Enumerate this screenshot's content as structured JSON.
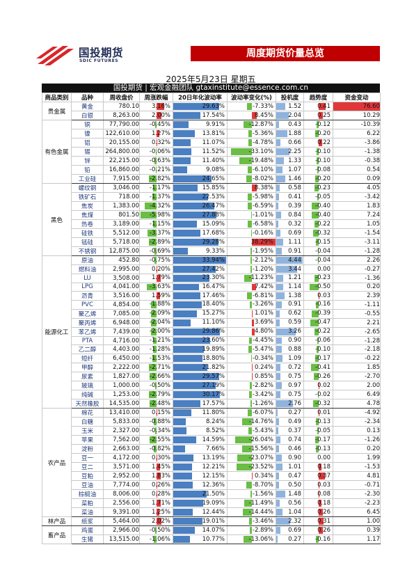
{
  "header": {
    "logo_cn": "国投期货",
    "logo_en": "SDIC FUTURES",
    "banner": "周度期货价量总览",
    "date": "2025年5月23日 星期五",
    "team_line": "国投期货 | 宏观金融团队  gtaxinstitute@essence.com.cn"
  },
  "columns": [
    "商品类别",
    "品种",
    "周收盘价",
    "周涨跌幅",
    "20日年化波动率",
    "波动率变化(%)",
    "投机度",
    "趋势度",
    "资金变动"
  ],
  "colors": {
    "brand": "#c00000",
    "up": "#e0383a",
    "down": "#6abd45",
    "bar": "#4a7fc1"
  },
  "groups": [
    {
      "category": "贵金属",
      "rows": [
        {
          "name": "黄金",
          "close": "780.10",
          "chg": "3.16%",
          "vol": "29.63%",
          "volchg": "-7.33%",
          "spec": "1.52",
          "trend": "0.41",
          "fund": "76.60"
        },
        {
          "name": "白银",
          "close": "8,263.00",
          "chg": "2.00%",
          "vol": "17.54%",
          "volchg": "8.45%",
          "spec": "2.04",
          "trend": "0.25",
          "fund": "10.29"
        }
      ]
    },
    {
      "category": "有色金属",
      "rows": [
        {
          "name": "铜",
          "close": "77,790.00",
          "chg": "-0.45%",
          "vol": "9.91%",
          "volchg": "-12.87%",
          "spec": "0.43",
          "trend": "-0.12",
          "fund": "-10.39"
        },
        {
          "name": "镍",
          "close": "122,610.00",
          "chg": "1.27%",
          "vol": "13.81%",
          "volchg": "-5.36%",
          "spec": "1.88",
          "trend": "-0.20",
          "fund": "6.22"
        },
        {
          "name": "铝",
          "close": "20,155.00",
          "chg": "0.32%",
          "vol": "11.07%",
          "volchg": "-4.78%",
          "spec": "0.66",
          "trend": "0.22",
          "fund": "-3.86"
        },
        {
          "name": "锡",
          "close": "264,800.00",
          "chg": "-0.06%",
          "vol": "11.52%",
          "volchg": "-33.10%",
          "spec": "2.25",
          "trend": "-0.10",
          "fund": "-1.38"
        },
        {
          "name": "锌",
          "close": "22,215.00",
          "chg": "-0.63%",
          "vol": "11.40%",
          "volchg": "-19.48%",
          "spec": "1.33",
          "trend": "-0.10",
          "fund": "-0.38"
        },
        {
          "name": "铅",
          "close": "16,860.00",
          "chg": "-0.21%",
          "vol": "9.08%",
          "volchg": "-6.10%",
          "spec": "1.07",
          "trend": "-0.08",
          "fund": "0.54"
        },
        {
          "name": "工业硅",
          "close": "7,915.00",
          "chg": "-2.82%",
          "vol": "24.65%",
          "volchg": "-8.02%",
          "spec": "1.46",
          "trend": "-0.20",
          "fund": "0.09"
        }
      ]
    },
    {
      "category": "黑色",
      "rows": [
        {
          "name": "螺纹钢",
          "close": "3,046.00",
          "chg": "-1.17%",
          "vol": "15.85%",
          "volchg": "8.38%",
          "spec": "0.58",
          "trend": "-0.23",
          "fund": "4.05"
        },
        {
          "name": "铁矿石",
          "close": "718.00",
          "chg": "-1.37%",
          "vol": "22.53%",
          "volchg": "-5.98%",
          "spec": "0.41",
          "trend": "-0.05",
          "fund": "-3.42"
        },
        {
          "name": "焦炭",
          "close": "1,383.00",
          "chg": "-4.32%",
          "vol": "26.47%",
          "volchg": "-6.59%",
          "spec": "0.39",
          "trend": "-0.40",
          "fund": "1.83"
        },
        {
          "name": "焦煤",
          "close": "801.50",
          "chg": "-5.98%",
          "vol": "27.88%",
          "volchg": "-1.01%",
          "spec": "0.84",
          "trend": "-0.40",
          "fund": "7.24"
        },
        {
          "name": "热卷",
          "close": "3,189.00",
          "chg": "-1.15%",
          "vol": "15.09%",
          "volchg": "-6.58%",
          "spec": "0.32",
          "trend": "-0.22",
          "fund": "1.05"
        },
        {
          "name": "硅铁",
          "close": "5,512.00",
          "chg": "-3.37%",
          "vol": "17.68%",
          "volchg": "-0.16%",
          "spec": "0.69",
          "trend": "-0.32",
          "fund": "-1.54"
        },
        {
          "name": "锰硅",
          "close": "5,718.00",
          "chg": "-2.89%",
          "vol": "29.28%",
          "volchg": "38.29%",
          "spec": "1.11",
          "trend": "-0.15",
          "fund": "-3.11"
        },
        {
          "name": "不锈钢",
          "close": "12,875.00",
          "chg": "-0.69%",
          "vol": "9.33%",
          "volchg": "-1.95%",
          "spec": "0.91",
          "trend": "-0.04",
          "fund": "-1.28"
        }
      ]
    },
    {
      "category": "能源化工",
      "rows": [
        {
          "name": "原油",
          "close": "452.80",
          "chg": "-0.75%",
          "vol": "33.94%",
          "volchg": "-2.12%",
          "spec": "4.44",
          "trend": "-0.04",
          "fund": "2.26"
        },
        {
          "name": "燃料油",
          "close": "2,995.00",
          "chg": "0.20%",
          "vol": "27.42%",
          "volchg": "-1.20%",
          "spec": "3.44",
          "trend": "0.00",
          "fund": "-0.27"
        },
        {
          "name": "LU",
          "close": "3,508.00",
          "chg": "1.79%",
          "vol": "23.30%",
          "volchg": "-11.23%",
          "spec": "1.21",
          "trend": "-0.23",
          "fund": "-1.36"
        },
        {
          "name": "LPG",
          "close": "4,041.00",
          "chg": "-3.63%",
          "vol": "16.47%",
          "volchg": "7.42%",
          "spec": "1.14",
          "trend": "-0.50",
          "fund": "0.20"
        },
        {
          "name": "沥青",
          "close": "3,516.00",
          "chg": "1.59%",
          "vol": "17.46%",
          "volchg": "-6.81%",
          "spec": "1.38",
          "trend": "0.03",
          "fund": "2.39"
        },
        {
          "name": "PVC",
          "close": "4,854.00",
          "chg": "-1.88%",
          "vol": "18.40%",
          "volchg": "-3.26%",
          "spec": "0.91",
          "trend": "-0.16",
          "fund": "-1.11"
        },
        {
          "name": "聚乙烯",
          "close": "7,085.00",
          "chg": "-2.09%",
          "vol": "15.27%",
          "volchg": "1.01%",
          "spec": "0.62",
          "trend": "-0.39",
          "fund": "-0.55"
        },
        {
          "name": "聚丙烯",
          "close": "6,948.00",
          "chg": "-2.04%",
          "vol": "11.10%",
          "volchg": "3.69%",
          "spec": "0.59",
          "trend": "-0.47",
          "fund": "2.21"
        },
        {
          "name": "苯乙烯",
          "close": "7,439.00",
          "chg": "-2.00%",
          "vol": "29.86%",
          "volchg": "4.80%",
          "spec": "3.26",
          "trend": "-0.22",
          "fund": "-2.65"
        },
        {
          "name": "PTA",
          "close": "4,716.00",
          "chg": "-1.21%",
          "vol": "23.60%",
          "volchg": "-4.45%",
          "spec": "0.90",
          "trend": "-0.06",
          "fund": "-1.28"
        },
        {
          "name": "乙二醇",
          "close": "4,403.00",
          "chg": "-1.28%",
          "vol": "19.89%",
          "volchg": "-5.47%",
          "spec": "0.88",
          "trend": "-0.10",
          "fund": "-2.18"
        },
        {
          "name": "短纤",
          "close": "6,450.00",
          "chg": "-1.53%",
          "vol": "18.80%",
          "volchg": "-0.34%",
          "spec": "1.09",
          "trend": "-0.17",
          "fund": "-0.22"
        },
        {
          "name": "甲醇",
          "close": "2,222.00",
          "chg": "-2.71%",
          "vol": "21.82%",
          "volchg": "0.24%",
          "spec": "0.72",
          "trend": "-0.41",
          "fund": "1.85"
        },
        {
          "name": "尿素",
          "close": "1,827.00",
          "chg": "-2.66%",
          "vol": "29.57%",
          "volchg": "0.85%",
          "spec": "0.75",
          "trend": "-0.26",
          "fund": "-2.70"
        },
        {
          "name": "玻璃",
          "close": "1,000.00",
          "chg": "-0.50%",
          "vol": "27.19%",
          "volchg": "-2.82%",
          "spec": "0.97",
          "trend": "0.02",
          "fund": "2.00"
        },
        {
          "name": "纯碱",
          "close": "1,253.00",
          "chg": "-2.79%",
          "vol": "30.17%",
          "volchg": "-3.42%",
          "spec": "0.75",
          "trend": "-0.02",
          "fund": "6.49"
        },
        {
          "name": "天然橡胶",
          "close": "14,535.00",
          "chg": "-2.48%",
          "vol": "17.57%",
          "volchg": "-1.26%",
          "spec": "2.76",
          "trend": "-0.32",
          "fund": "4.78"
        }
      ]
    },
    {
      "category": "农产品",
      "rows": [
        {
          "name": "棉花",
          "close": "13,410.00",
          "chg": "0.15%",
          "vol": "11.80%",
          "volchg": "-6.07%",
          "spec": "0.27",
          "trend": "0.01",
          "fund": "-4.92"
        },
        {
          "name": "白糖",
          "close": "5,833.00",
          "chg": "-0.88%",
          "vol": "8.24%",
          "volchg": "-14.76%",
          "spec": "0.49",
          "trend": "-0.13",
          "fund": "-2.34"
        },
        {
          "name": "玉米",
          "close": "2,327.00",
          "chg": "-0.34%",
          "vol": "8.52%",
          "volchg": "-5.43%",
          "spec": "0.37",
          "trend": "-0.05",
          "fund": "0.13"
        },
        {
          "name": "苹果",
          "close": "7,562.00",
          "chg": "-2.55%",
          "vol": "14.59%",
          "volchg": "-26.04%",
          "spec": "0.74",
          "trend": "-0.17",
          "fund": "-1.26"
        },
        {
          "name": "淀粉",
          "close": "2,663.00",
          "chg": "-0.82%",
          "vol": "7.66%",
          "volchg": "-15.56%",
          "spec": "0.46",
          "trend": "-0.13",
          "fund": "0.20"
        },
        {
          "name": "豆一",
          "close": "4,172.00",
          "chg": "0.30%",
          "vol": "13.19%",
          "volchg": "-23.07%",
          "spec": "0.90",
          "trend": "0.00",
          "fund": "1.99"
        },
        {
          "name": "豆二",
          "close": "3,571.00",
          "chg": "1.45%",
          "vol": "12.21%",
          "volchg": "-23.52%",
          "spec": "1.01",
          "trend": "0.18",
          "fund": "-1.53"
        },
        {
          "name": "豆粕",
          "close": "2,952.00",
          "chg": "1.83%",
          "vol": "12.15%",
          "volchg": "0.34%",
          "spec": "0.47",
          "trend": "0.37",
          "fund": "4.81"
        },
        {
          "name": "豆油",
          "close": "7,774.00",
          "chg": "0.26%",
          "vol": "12.36%",
          "volchg": "-8.70%",
          "spec": "0.50",
          "trend": "0.03",
          "fund": "-0.71"
        },
        {
          "name": "棕榈油",
          "close": "8,006.00",
          "chg": "0.28%",
          "vol": "21.50%",
          "volchg": "-1.56%",
          "spec": "1.48",
          "trend": "0.08",
          "fund": "-2.30"
        },
        {
          "name": "菜粕",
          "close": "2,556.00",
          "chg": "1.71%",
          "vol": "19.09%",
          "volchg": "-11.49%",
          "spec": "0.56",
          "trend": "0.18",
          "fund": "-2.23"
        },
        {
          "name": "菜油",
          "close": "9,391.00",
          "chg": "1.25%",
          "vol": "12.44%",
          "volchg": "-14.44%",
          "spec": "1.04",
          "trend": "0.26",
          "fund": "6.45"
        }
      ]
    },
    {
      "category": "林产品",
      "rows": [
        {
          "name": "纸浆",
          "close": "5,464.00",
          "chg": "2.02%",
          "vol": "19.01%",
          "volchg": "-3.46%",
          "spec": "2.32",
          "trend": "0.31",
          "fund": "1.00"
        }
      ]
    },
    {
      "category": "畜产品",
      "rows": [
        {
          "name": "鸡蛋",
          "close": "2,966.00",
          "chg": "-0.50%",
          "vol": "14.07%",
          "volchg": "-2.89%",
          "spec": "0.69",
          "trend": "0.26",
          "fund": "0.39"
        },
        {
          "name": "生猪",
          "close": "13,515.00",
          "chg": "-1.06%",
          "vol": "10.77%",
          "volchg": "-13.06%",
          "spec": "0.27",
          "trend": "-0.16",
          "fund": "1.17"
        }
      ]
    }
  ]
}
